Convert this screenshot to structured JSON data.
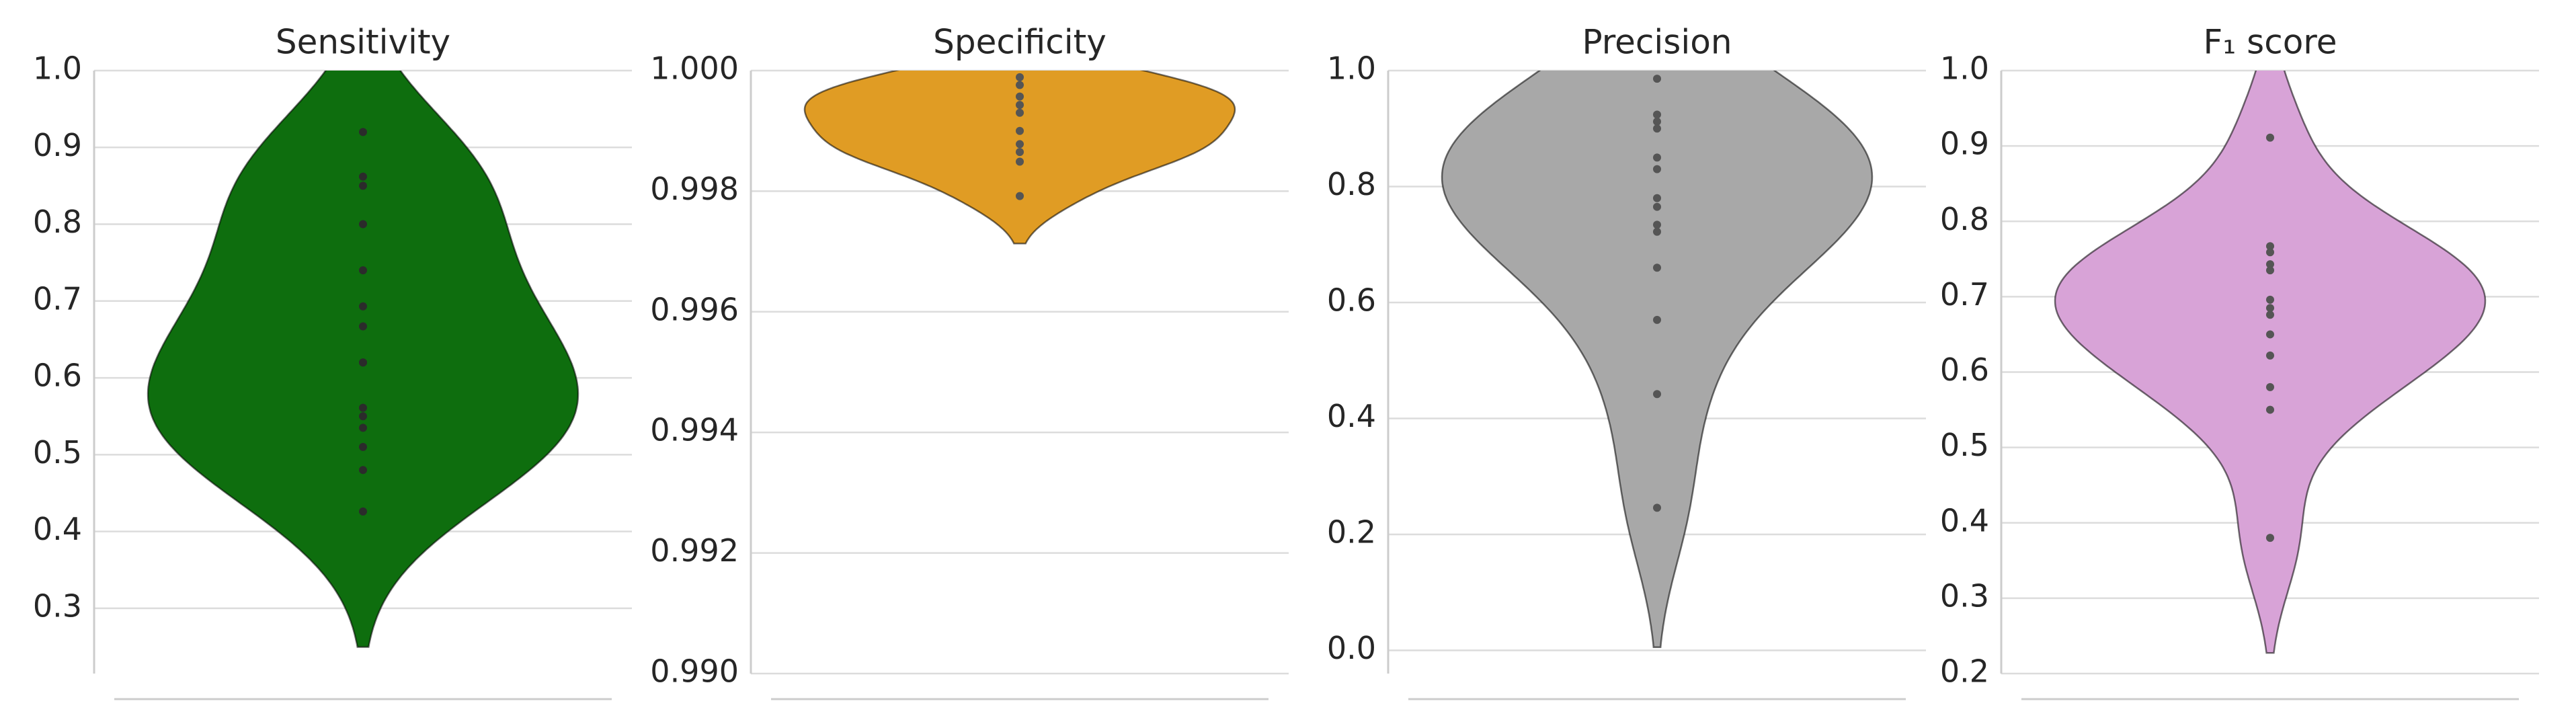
{
  "chart_data": [
    {
      "type": "violin",
      "title": "Sensitivity",
      "color": "#0e6e0e",
      "point_color": "#2b2b2b",
      "values": [
        0.92,
        0.862,
        0.85,
        0.8,
        0.74,
        0.693,
        0.667,
        0.62,
        0.62,
        0.561,
        0.55,
        0.535,
        0.51,
        0.48,
        0.426
      ],
      "ylim": [
        0.215,
        1.0
      ],
      "yticks": [
        0.3,
        0.4,
        0.5,
        0.6,
        0.7,
        0.8,
        0.9,
        {
          "value": 1.0,
          "label": "1.0"
        }
      ],
      "grid": true
    },
    {
      "type": "violin",
      "title": "Specificity",
      "color": "#e09c24",
      "point_color": "#555555",
      "values": [
        0.99989,
        0.99976,
        0.99957,
        0.99943,
        0.9993,
        0.999,
        0.99878,
        0.99865,
        0.99849,
        0.99792
      ],
      "ylim": [
        0.99,
        1.0
      ],
      "yticks": [
        {
          "value": 0.99,
          "label": "0.990"
        },
        {
          "value": 0.992,
          "label": "0.992"
        },
        {
          "value": 0.994,
          "label": "0.994"
        },
        {
          "value": 0.996,
          "label": "0.996"
        },
        {
          "value": 0.998,
          "label": "0.998"
        },
        {
          "value": 1.0,
          "label": "1.000"
        }
      ],
      "grid": true
    },
    {
      "type": "violin",
      "title": "Precision",
      "color": "#a8a8a8",
      "point_color": "#555555",
      "values": [
        0.986,
        0.924,
        0.912,
        0.9,
        0.85,
        0.83,
        0.78,
        0.765,
        0.734,
        0.722,
        0.66,
        0.57,
        0.442,
        0.246
      ],
      "ylim": [
        -0.04,
        1.0
      ],
      "yticks": [
        {
          "value": 0,
          "label": "0.0"
        },
        0.2,
        0.4,
        0.6,
        0.8,
        {
          "value": 1.0,
          "label": "1.0"
        }
      ],
      "grid": true
    },
    {
      "type": "violin",
      "title": "F₁ score",
      "color": "#d8a3d7",
      "point_color": "#555555",
      "values": [
        0.911,
        0.767,
        0.759,
        0.743,
        0.735,
        0.696,
        0.685,
        0.676,
        0.65,
        0.622,
        0.58,
        0.55,
        0.38
      ],
      "ylim": [
        0.2,
        1.0
      ],
      "yticks": [
        0.2,
        0.3,
        0.4,
        0.5,
        0.6,
        0.7,
        0.8,
        0.9,
        {
          "value": 1.0,
          "label": "1.0"
        }
      ],
      "grid": true
    }
  ]
}
